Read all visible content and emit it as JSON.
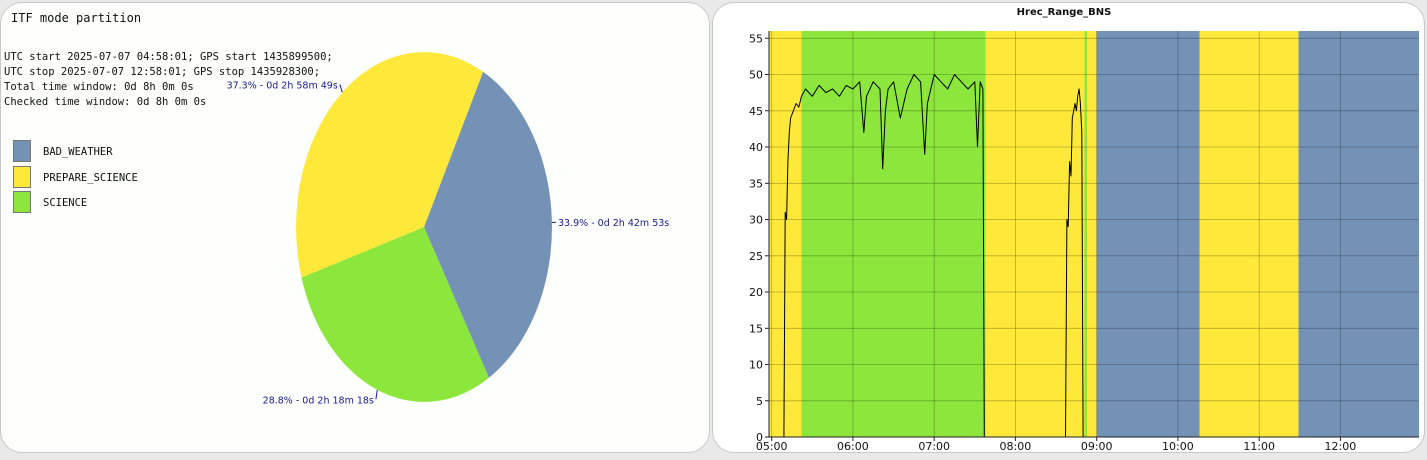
{
  "colors": {
    "bad_weather": "#7392b6",
    "prepare_science": "#fee83a",
    "science": "#8ce63c",
    "slice_label": "#1a1a8c"
  },
  "chart_data": [
    {
      "type": "pie",
      "title": "ITF mode partition",
      "info": [
        "UTC start 2025-07-07 04:58:01; GPS start 1435899500;",
        "UTC stop 2025-07-07 12:58:01; GPS stop 1435928300;",
        "Total time window: 0d 8h 0m 0s",
        "Checked time window: 0d 8h 0m 0s"
      ],
      "legend": [
        "BAD_WEATHER",
        "PREPARE_SCIENCE",
        "SCIENCE"
      ],
      "slices": [
        {
          "name": "BAD_WEATHER",
          "percent": 33.9,
          "label": "33.9% - 0d 2h 42m 53s",
          "color": "#7392b6"
        },
        {
          "name": "SCIENCE",
          "percent": 28.8,
          "label": "28.8% - 0d 2h 18m 18s",
          "color": "#8ce63c"
        },
        {
          "name": "PREPARE_SCIENCE",
          "percent": 37.3,
          "label": "37.3% - 0d 2h 58m 49s",
          "color": "#fee83a"
        }
      ]
    },
    {
      "type": "line",
      "title": "Hrec_Range_BNS",
      "xlim": [
        "04:58:01",
        "12:58:01"
      ],
      "ylim": [
        0,
        56
      ],
      "yticks": [
        0,
        5,
        10,
        15,
        20,
        25,
        30,
        35,
        40,
        45,
        50,
        55
      ],
      "xticks": [
        "05:00",
        "06:00",
        "07:00",
        "08:00",
        "09:00",
        "10:00",
        "11:00",
        "12:00"
      ],
      "grid": true,
      "mode_bands": [
        {
          "mode": "PREPARE_SCIENCE",
          "start": "04:58:01",
          "end": "05:22"
        },
        {
          "mode": "SCIENCE",
          "start": "05:22",
          "end": "07:38"
        },
        {
          "mode": "PREPARE_SCIENCE",
          "start": "07:38",
          "end": "08:51"
        },
        {
          "mode": "SCIENCE",
          "start": "08:51",
          "end": "08:53"
        },
        {
          "mode": "PREPARE_SCIENCE",
          "start": "08:53",
          "end": "09:00"
        },
        {
          "mode": "BAD_WEATHER",
          "start": "09:00",
          "end": "10:16"
        },
        {
          "mode": "PREPARE_SCIENCE",
          "start": "10:16",
          "end": "11:29"
        },
        {
          "mode": "BAD_WEATHER",
          "start": "11:29",
          "end": "12:58:01"
        }
      ],
      "series": [
        {
          "segments": [
            {
              "x": [
                "05:09",
                "05:10",
                "05:11",
                "05:12",
                "05:13",
                "05:14",
                "05:16",
                "05:18",
                "05:20",
                "05:22",
                "05:25",
                "05:30",
                "05:35",
                "05:40",
                "05:45",
                "05:50",
                "05:55",
                "06:00",
                "06:05",
                "06:08",
                "06:10",
                "06:15",
                "06:20",
                "06:22",
                "06:24",
                "06:26",
                "06:30",
                "06:35",
                "06:40",
                "06:45",
                "06:50",
                "06:53",
                "06:55",
                "07:00",
                "07:05",
                "07:10",
                "07:15",
                "07:20",
                "07:25",
                "07:30",
                "07:32",
                "07:34",
                "07:36",
                "07:37"
              ],
              "y": [
                0,
                31,
                30,
                38,
                42,
                44,
                45,
                46,
                45.5,
                47,
                48,
                47,
                48.5,
                47.5,
                48,
                47,
                48.5,
                48,
                49,
                42,
                47,
                49,
                48,
                37,
                45,
                48,
                49,
                44,
                48,
                50,
                49,
                39,
                46,
                50,
                49,
                48,
                50,
                49,
                48,
                49,
                40,
                49,
                48,
                0
              ]
            },
            {
              "x": [
                "08:37",
                "08:38",
                "08:39",
                "08:40",
                "08:41",
                "08:42",
                "08:43",
                "08:44",
                "08:45",
                "08:46",
                "08:47",
                "08:48",
                "08:49",
                "08:50"
              ],
              "y": [
                0,
                30,
                29,
                38,
                36,
                44,
                45,
                46,
                45,
                47,
                48,
                46,
                42,
                0
              ]
            }
          ]
        }
      ]
    }
  ]
}
